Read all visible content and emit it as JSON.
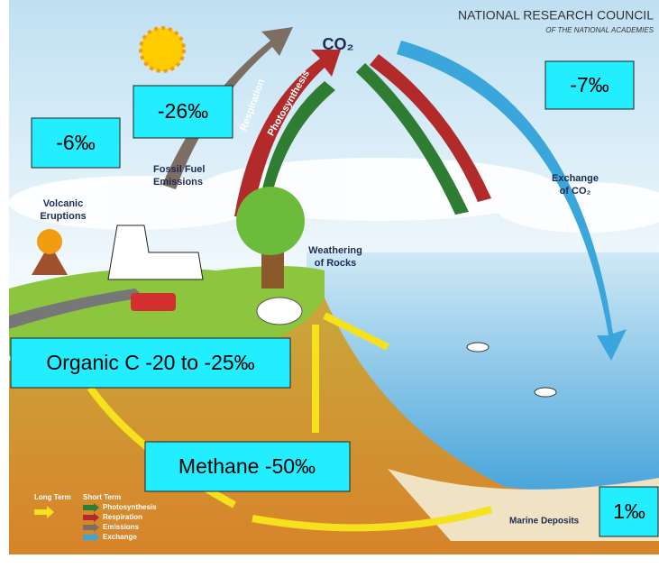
{
  "header": {
    "title": "NATIONAL RESEARCH COUNCIL",
    "subtitle": "OF THE NATIONAL ACADEMIES"
  },
  "labels": {
    "co2": "CO₂",
    "respiration": "Respiration",
    "photosynthesis": "Photosynthesis",
    "fossil_fuel": [
      "Fossil Fuel",
      "Emissions"
    ],
    "volcanic": [
      "Volcanic",
      "Eruptions"
    ],
    "weathering": [
      "Weathering",
      "of Rocks"
    ],
    "exchange": [
      "Exchange",
      "of CO₂"
    ],
    "marine": "Marine Deposits"
  },
  "legend": {
    "long_term": "Long Term",
    "short_term": "Short Term",
    "items": [
      "Photosynthesis",
      "Respiration",
      "Emissions",
      "Exchange"
    ]
  },
  "boxes": [
    "-26‰",
    "-6‰",
    "-7‰",
    "Organic C -20 to -25‰",
    "Methane -50‰",
    "1‰"
  ]
}
